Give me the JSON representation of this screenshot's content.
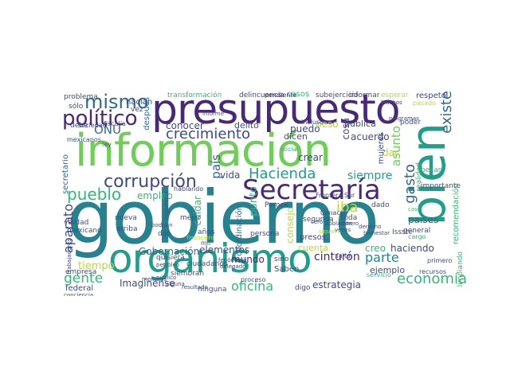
{
  "palette": {
    "dark_purple": "#482878",
    "blue": "#3e4a89",
    "steel": "#31688e",
    "teal": "#26828e",
    "teal_green": "#1f9e89",
    "green": "#35b779",
    "light_green": "#6ece58",
    "yellow_green": "#b5de2b",
    "yellow": "#fde725"
  },
  "words": [
    "gobierno",
    "información",
    "presupuesto",
    "organismo",
    "bien",
    "Secretaría",
    "corrupción",
    "político",
    "mismo",
    "crecimiento",
    "Hacienda",
    "pueblo",
    "existe",
    "asunto",
    "gasto",
    "economía",
    "aparato",
    "gente",
    "país",
    "iba",
    "parte",
    "ONU",
    "tiempo",
    "oficina",
    "estrategia",
    "cinturón",
    "Imagínense",
    "Gobernación",
    "elementos",
    "mundo",
    "coordinación",
    "empleo",
    "conocer",
    "delito",
    "dicen",
    "acuerdo",
    "puedo",
    "crear",
    "peso",
    "cosa",
    "pública",
    "siempre",
    "vida",
    "punto",
    "cuidar",
    "dar",
    "mujeres",
    "haciendo",
    "ejemplo",
    "creo",
    "cuenta",
    "consejo",
    "recomendación",
    "países",
    "secretario",
    "casos",
    "respeto",
    "hacían",
    "delincuencia",
    "transformación",
    "problema",
    "después",
    "presos",
    "ciudadanos",
    "Saben",
    "federal",
    "verdad",
    "nueva",
    "mexicano",
    "arriba",
    "dijo",
    "años",
    "mejor",
    "toda",
    "general",
    "dado",
    "realidad",
    "becas",
    "importante",
    "limpiando",
    "empresa",
    "ninguna",
    "sino",
    "digo",
    "quisiera",
    "siembran",
    "persona",
    "segunda",
    "Issste",
    "Pemex",
    "Frontera Sur",
    "subejercicio",
    "informar",
    "pendiente",
    "esperar",
    "pasado",
    "poder",
    "debe",
    "sólo",
    "vez",
    "incluso",
    "fiscalía",
    "proceso",
    "mexicanos",
    "falta",
    "recursos",
    "primero",
    "cargo",
    "servicio",
    "mil",
    "ley",
    "hablando",
    "sociedad",
    "social",
    "población",
    "siquiera",
    "Conacyt",
    "cero",
    "dinero",
    "veces",
    "derecho",
    "bienestar",
    "programas",
    "fenómeno",
    "resultado",
    "delegado",
    "alguna",
    "público",
    "petróleo",
    "mentiras",
    "trabajadores",
    "conciencia",
    "financiero",
    "impuestos",
    "podrían",
    "Muchos",
    "caso",
    "informe"
  ],
  "header": {},
  "footer": {}
}
